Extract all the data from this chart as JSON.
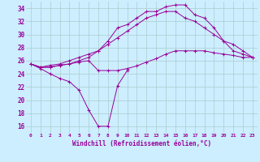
{
  "color": "#990099",
  "bg_color": "#cceeff",
  "grid_color": "#aacccc",
  "ylim": [
    15,
    35
  ],
  "yticks": [
    16,
    18,
    20,
    22,
    24,
    26,
    28,
    30,
    32,
    34
  ],
  "xticks": [
    0,
    1,
    2,
    3,
    4,
    5,
    6,
    7,
    8,
    9,
    10,
    11,
    12,
    13,
    14,
    15,
    16,
    17,
    18,
    19,
    20,
    21,
    22,
    23
  ],
  "xlabel": "Windchill (Refroidissement éolien,°C)",
  "windchill": [
    25.5,
    24.8,
    24.0,
    23.3,
    22.8,
    21.5,
    18.5,
    16.0,
    16.0,
    22.2,
    24.5,
    null,
    null,
    null,
    null,
    null,
    null,
    null,
    null,
    null,
    null,
    null,
    null,
    null
  ],
  "s_top": [
    25.5,
    25.0,
    25.0,
    25.3,
    25.5,
    26.0,
    26.5,
    27.5,
    29.0,
    31.0,
    31.5,
    32.5,
    33.5,
    33.5,
    34.2,
    34.5,
    34.5,
    33.0,
    32.5,
    31.0,
    29.0,
    27.5,
    27.0,
    26.5
  ],
  "s_mid": [
    25.5,
    25.0,
    25.3,
    25.5,
    26.0,
    26.5,
    27.0,
    27.5,
    28.5,
    29.5,
    30.5,
    31.5,
    32.5,
    33.0,
    33.5,
    33.5,
    32.5,
    32.0,
    31.0,
    30.0,
    29.0,
    28.5,
    27.5,
    26.5
  ],
  "s_low": [
    25.5,
    25.0,
    25.0,
    25.3,
    25.5,
    25.8,
    26.0,
    24.5,
    24.5,
    24.5,
    24.8,
    25.2,
    25.8,
    26.3,
    27.0,
    27.5,
    27.5,
    27.5,
    27.5,
    27.2,
    27.0,
    26.8,
    26.5,
    26.5
  ]
}
